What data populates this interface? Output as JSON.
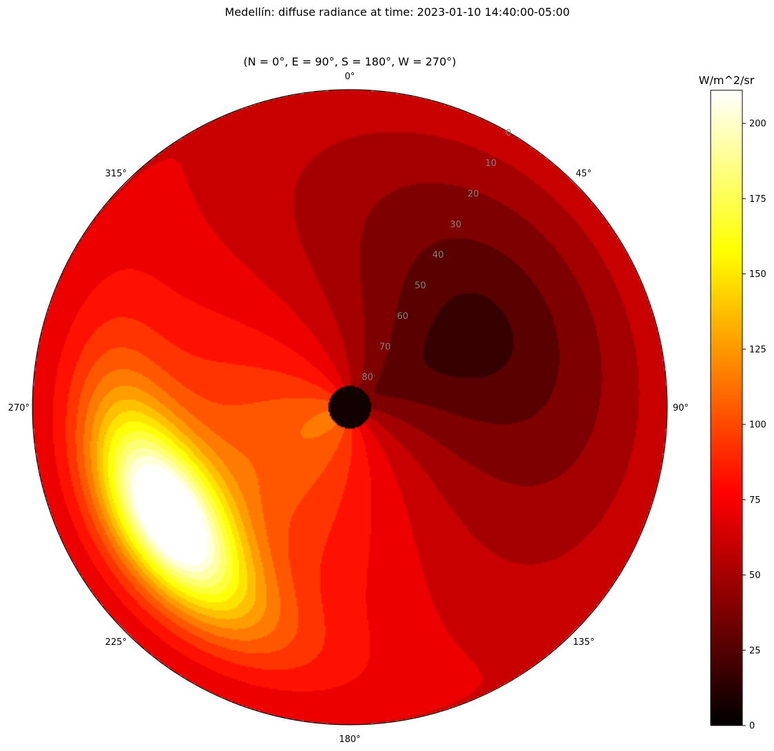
{
  "chart_data": {
    "type": "heatmap",
    "projection": "polar",
    "title": "Medellín: diffuse radiance at time: 2023-01-10 14:40:00-05:00",
    "subtitle": "(N = 0°, E = 90°, S = 180°, W = 270°)",
    "colormap": "hot",
    "azimuth_ticks": [
      "0°",
      "45°",
      "90°",
      "135°",
      "180°",
      "225°",
      "270°",
      "315°"
    ],
    "zenith_ticks": [
      "0",
      "10",
      "20",
      "30",
      "40",
      "50",
      "60",
      "70",
      "80"
    ],
    "zenith_range": [
      0,
      90
    ],
    "sun_position": {
      "azimuth_deg": 239,
      "zenith_deg": 30
    },
    "sun_peak_value": 210,
    "dim_region": {
      "azimuth_deg": 60,
      "zenith_deg": 50,
      "value": 15
    },
    "horizon_band_value": 8,
    "colorbar": {
      "label": "W/m^2/sr",
      "ticks": [
        "0",
        "25",
        "50",
        "75",
        "100",
        "125",
        "150",
        "175",
        "200"
      ],
      "range": [
        0,
        211
      ]
    }
  }
}
